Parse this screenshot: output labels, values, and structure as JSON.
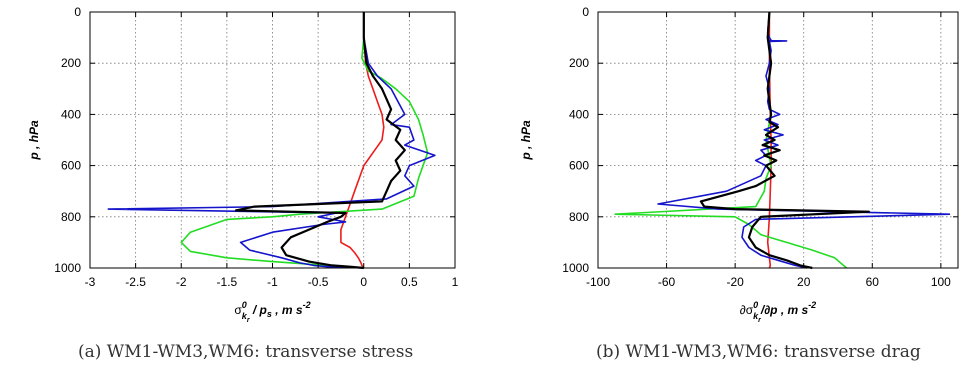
{
  "chart_data": [
    {
      "type": "line",
      "caption": "(a)  WM1-WM3,WM6: transverse stress",
      "xlim": [
        -3,
        1
      ],
      "ylim": [
        1000,
        0
      ],
      "xticks": [
        -3,
        -2.5,
        -2,
        -1.5,
        -1,
        -0.5,
        0,
        0.5,
        1
      ],
      "xtick_labels": [
        "-3",
        "-2.5",
        "-2",
        "-1.5",
        "-1",
        "-0.5",
        "0",
        "0.5",
        "1"
      ],
      "yticks": [
        0,
        200,
        400,
        600,
        800,
        1000
      ],
      "ytick_labels": [
        "0",
        "200",
        "400",
        "600",
        "800",
        "1000"
      ],
      "ylabel": "p , hPa",
      "xlabel": {
        "sigma": "σ",
        "sup": "0",
        "sub1": "k",
        "sub2": "r",
        "rest": " / p",
        "sub3": "s",
        "unit": " , m s",
        "unit_sup": "-2"
      },
      "grid": true,
      "series": [
        {
          "color": "#ee1c1c",
          "width": 1.6,
          "x": [
            0,
            0,
            0.02,
            0.05,
            0.1,
            0.15,
            0.2,
            0.22,
            0.2,
            0.1,
            0,
            -0.05,
            -0.1,
            -0.15,
            -0.2,
            -0.25,
            -0.25,
            -0.15,
            -0.1,
            -0.06,
            -0.03,
            -0.02,
            0
          ],
          "y": [
            0,
            100,
            200,
            250,
            300,
            350,
            400,
            450,
            500,
            550,
            600,
            650,
            700,
            750,
            800,
            850,
            900,
            920,
            940,
            960,
            980,
            990,
            1000
          ]
        },
        {
          "color": "#22dd22",
          "width": 1.6,
          "x": [
            0,
            0,
            -0.02,
            0.05,
            0.2,
            0.35,
            0.5,
            0.6,
            0.65,
            0.7,
            0.6,
            0.55,
            0.2,
            -0.7,
            -1.0,
            -1.5,
            -1.9,
            -2.0,
            -1.9,
            -1.5,
            -1.0,
            -0.6,
            -0.3,
            -0.1,
            0
          ],
          "y": [
            0,
            100,
            180,
            230,
            260,
            300,
            350,
            420,
            480,
            550,
            650,
            720,
            770,
            790,
            800,
            810,
            860,
            900,
            935,
            960,
            975,
            985,
            992,
            998,
            1000
          ]
        },
        {
          "color": "#1515cc",
          "width": 1.6,
          "x": [
            0,
            0,
            0.05,
            0.15,
            0.3,
            0.45,
            0.3,
            0.5,
            0.55,
            0.45,
            0.78,
            0.5,
            0.45,
            0.55,
            0.25,
            -1.0,
            -2.8,
            -0.3,
            -0.5,
            -0.2,
            -0.45,
            -1.0,
            -1.35,
            -1.25,
            -0.9,
            -0.7,
            -0.55,
            -0.4,
            -0.2,
            0
          ],
          "y": [
            0,
            100,
            200,
            250,
            300,
            400,
            440,
            450,
            500,
            520,
            560,
            600,
            640,
            680,
            730,
            760,
            770,
            785,
            800,
            820,
            830,
            860,
            900,
            930,
            960,
            980,
            990,
            995,
            998,
            1000
          ]
        },
        {
          "color": "#000000",
          "width": 2.2,
          "x": [
            0,
            0,
            0.03,
            0.1,
            0.2,
            0.3,
            0.25,
            0.4,
            0.35,
            0.45,
            0.35,
            0.4,
            0.3,
            0.25,
            0.2,
            -1.2,
            -1.4,
            -0.2,
            -0.25,
            -0.4,
            -0.6,
            -0.8,
            -0.9,
            -0.85,
            -0.6,
            -0.35,
            -0.15,
            0
          ],
          "y": [
            0,
            100,
            200,
            250,
            300,
            380,
            420,
            460,
            500,
            540,
            580,
            620,
            660,
            700,
            740,
            760,
            775,
            785,
            800,
            820,
            850,
            880,
            920,
            950,
            975,
            990,
            995,
            1000
          ]
        }
      ]
    },
    {
      "type": "line",
      "caption": "(b)  WM1-WM3,WM6: transverse drag",
      "xlim": [
        -100,
        110
      ],
      "ylim": [
        1000,
        0
      ],
      "xticks": [
        -100,
        -60,
        -20,
        20,
        60,
        100
      ],
      "xtick_labels": [
        "-100",
        "-60",
        "-20",
        "20",
        "60",
        "100"
      ],
      "yticks": [
        0,
        200,
        400,
        600,
        800,
        1000
      ],
      "ytick_labels": [
        "0",
        "200",
        "400",
        "600",
        "800",
        "1000"
      ],
      "ylabel": "p , hPa",
      "xlabel": {
        "prefix": "∂σ",
        "sup": "0",
        "sub1": "k",
        "sub2": "r",
        "rest": "/∂p , m s",
        "unit_sup": "-2"
      },
      "grid": true,
      "series": [
        {
          "color": "#ee1c1c",
          "width": 1.6,
          "x": [
            0,
            0,
            0.5,
            1,
            1,
            0.5,
            0,
            -0.5,
            -1,
            -0.5,
            0,
            0.5,
            0
          ],
          "y": [
            0,
            200,
            400,
            500,
            600,
            700,
            800,
            850,
            900,
            930,
            960,
            990,
            1000
          ]
        },
        {
          "color": "#22dd22",
          "width": 1.6,
          "x": [
            0,
            -1,
            1,
            -1,
            1,
            -2,
            1,
            -2,
            -3,
            -8,
            -90,
            -20,
            -12,
            -5,
            10,
            25,
            38,
            45
          ],
          "y": [
            0,
            100,
            200,
            300,
            400,
            500,
            600,
            650,
            700,
            760,
            790,
            800,
            830,
            870,
            900,
            930,
            960,
            1000
          ]
        },
        {
          "color": "#1515cc",
          "width": 1.6,
          "x": [
            0,
            -1,
            0,
            1,
            0,
            10,
            0,
            1,
            0,
            -2,
            0,
            -1,
            0,
            6,
            -2,
            5,
            -3,
            8,
            -3,
            5,
            -5,
            -2,
            -8,
            -2,
            -5,
            -25,
            -65,
            -30,
            105,
            -8,
            -15,
            -16,
            -12,
            -5,
            5,
            15,
            22
          ],
          "y": [
            0,
            80,
            100,
            110,
            112,
            113,
            115,
            150,
            200,
            250,
            300,
            350,
            380,
            400,
            420,
            440,
            460,
            480,
            500,
            520,
            540,
            560,
            580,
            600,
            640,
            700,
            750,
            770,
            790,
            810,
            840,
            880,
            920,
            950,
            970,
            990,
            1000
          ]
        },
        {
          "color": "#000000",
          "width": 2.2,
          "x": [
            0,
            -1,
            1,
            -1,
            1,
            0,
            5,
            -2,
            3,
            -4,
            6,
            -3,
            4,
            -2,
            3,
            -8,
            -18,
            -40,
            -38,
            -20,
            58,
            -5,
            -10,
            -12,
            -8,
            0,
            10,
            18,
            25
          ],
          "y": [
            0,
            100,
            200,
            300,
            400,
            430,
            450,
            480,
            500,
            520,
            540,
            560,
            580,
            600,
            640,
            680,
            700,
            740,
            760,
            770,
            780,
            800,
            840,
            880,
            920,
            950,
            970,
            990,
            1000
          ]
        }
      ]
    }
  ]
}
